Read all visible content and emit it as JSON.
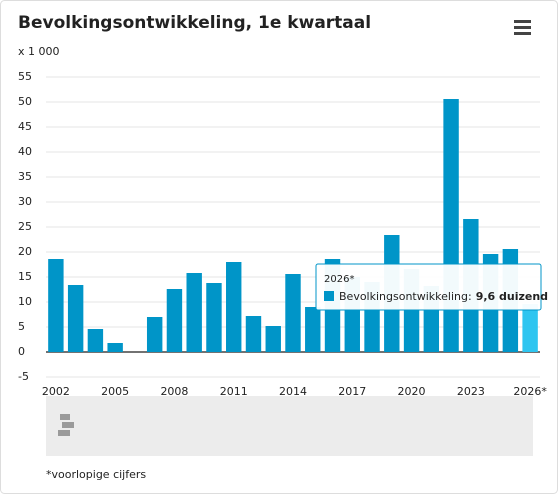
{
  "chart_data": {
    "type": "bar",
    "title": "Bevolkingsontwikkeling, 1e kwartaal",
    "y_unit_label": "x 1 000",
    "categories": [
      "2002",
      null,
      null,
      "2005",
      null,
      null,
      "2008",
      null,
      null,
      "2011",
      null,
      null,
      "2014",
      null,
      null,
      "2017",
      null,
      null,
      "2020",
      null,
      null,
      "2023",
      null,
      null,
      "2026*"
    ],
    "series": [
      {
        "name": "Bevolkingsontwikkeling",
        "color": "#0095c8",
        "values": [
          18.6,
          13.4,
          4.6,
          1.8,
          0,
          7.0,
          12.6,
          15.8,
          13.8,
          18.0,
          7.2,
          5.2,
          15.6,
          9.0,
          18.6,
          15,
          14,
          23.4,
          16.6,
          13.2,
          50.6,
          26.6,
          19.6,
          20.6,
          9.6
        ]
      }
    ],
    "highlight_index": 24,
    "highlight_color": "#2ec5f0",
    "ylim": [
      -5,
      55
    ],
    "yticks": [
      -5,
      0,
      5,
      10,
      15,
      20,
      25,
      30,
      35,
      40,
      45,
      50,
      55
    ],
    "grid": true,
    "tooltip": {
      "label": "Bevolkingsontwikkeling:",
      "value_label": "9,6 duizend"
    },
    "note": "*voorlopige cijfers"
  }
}
